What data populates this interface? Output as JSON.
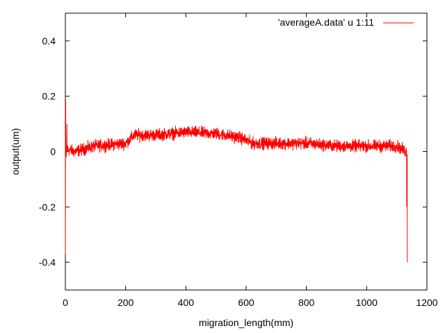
{
  "chart_data": {
    "type": "line",
    "title": "",
    "xlabel": "migration_length(mm)",
    "ylabel": "output(um)",
    "xlim": [
      0,
      1200
    ],
    "ylim": [
      -0.5,
      0.5
    ],
    "x_ticks": [
      0,
      200,
      400,
      600,
      800,
      1000,
      1200
    ],
    "x_tick_labels": [
      "0",
      "200",
      "400",
      "600",
      "800",
      "1000",
      "1200"
    ],
    "y_ticks": [
      -0.4,
      -0.2,
      0,
      0.2,
      0.4
    ],
    "y_tick_labels": [
      "-0.4",
      "-0.2",
      "0",
      "0.2",
      "0.4"
    ],
    "grid": false,
    "legend_position": "top-right",
    "series": [
      {
        "name": "'averageA.data' u 1:11",
        "color": "#ff0000",
        "style": "noisy line",
        "x_range": [
          0,
          1135
        ],
        "noise_amplitude": 0.02,
        "trend": {
          "x": [
            0,
            30,
            100,
            200,
            230,
            300,
            400,
            500,
            580,
            620,
            700,
            800,
            900,
            1000,
            1100,
            1130
          ],
          "y": [
            0.01,
            0.0,
            0.02,
            0.03,
            0.06,
            0.06,
            0.07,
            0.065,
            0.05,
            0.03,
            0.03,
            0.03,
            0.02,
            0.02,
            0.02,
            0.0
          ]
        },
        "spikes": [
          {
            "x": 0,
            "y": -0.37
          },
          {
            "x": 1,
            "y": 0.19
          },
          {
            "x": 3,
            "y": -0.02
          },
          {
            "x": 5,
            "y": 0.1
          },
          {
            "x": 1133,
            "y": -0.2
          },
          {
            "x": 1135,
            "y": -0.4
          }
        ]
      }
    ]
  }
}
